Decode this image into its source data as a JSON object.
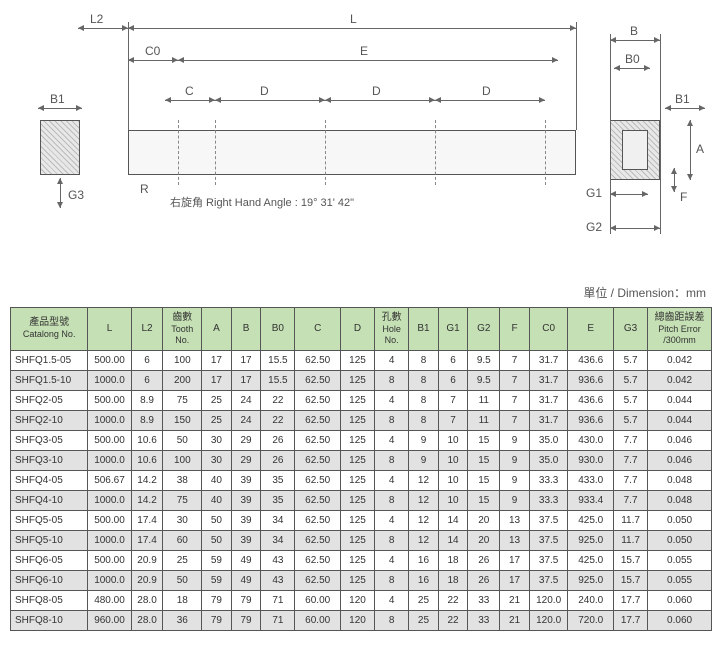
{
  "diagram": {
    "labels": {
      "L2": "L2",
      "L": "L",
      "C0": "C0",
      "E": "E",
      "B": "B",
      "B0": "B0",
      "B1": "B1",
      "C": "C",
      "D": "D",
      "G3": "G3",
      "R": "R",
      "A": "A",
      "F": "F",
      "G1": "G1",
      "G2": "G2"
    },
    "angle_note": "右旋角 Right Hand Angle : 19° 31' 42\"",
    "colors": {
      "line": "#666666",
      "fill": "#e8e8e8",
      "text": "#555555"
    }
  },
  "unit_label": "單位 / Dimension：mm",
  "table": {
    "header_bg": "#c5e0b4",
    "columns": [
      {
        "t": "產品型號",
        "s": "Catalong No."
      },
      {
        "t": "L"
      },
      {
        "t": "L2"
      },
      {
        "t": "齒數",
        "s": "Tooth No."
      },
      {
        "t": "A"
      },
      {
        "t": "B"
      },
      {
        "t": "B0"
      },
      {
        "t": "C"
      },
      {
        "t": "D"
      },
      {
        "t": "孔數",
        "s": "Hole No."
      },
      {
        "t": "B1"
      },
      {
        "t": "G1"
      },
      {
        "t": "G2"
      },
      {
        "t": "F"
      },
      {
        "t": "C0"
      },
      {
        "t": "E"
      },
      {
        "t": "G3"
      },
      {
        "t": "總齒距誤差",
        "s": "Pitch Error /300mm"
      }
    ],
    "rows": [
      [
        "SHFQ1.5-05",
        "500.00",
        "6",
        "100",
        "17",
        "17",
        "15.5",
        "62.50",
        "125",
        "4",
        "8",
        "6",
        "9.5",
        "7",
        "31.7",
        "436.6",
        "5.7",
        "0.042"
      ],
      [
        "SHFQ1.5-10",
        "1000.0",
        "6",
        "200",
        "17",
        "17",
        "15.5",
        "62.50",
        "125",
        "8",
        "8",
        "6",
        "9.5",
        "7",
        "31.7",
        "936.6",
        "5.7",
        "0.042"
      ],
      [
        "SHFQ2-05",
        "500.00",
        "8.9",
        "75",
        "25",
        "24",
        "22",
        "62.50",
        "125",
        "4",
        "8",
        "7",
        "11",
        "7",
        "31.7",
        "436.6",
        "5.7",
        "0.044"
      ],
      [
        "SHFQ2-10",
        "1000.0",
        "8.9",
        "150",
        "25",
        "24",
        "22",
        "62.50",
        "125",
        "8",
        "8",
        "7",
        "11",
        "7",
        "31.7",
        "936.6",
        "5.7",
        "0.044"
      ],
      [
        "SHFQ3-05",
        "500.00",
        "10.6",
        "50",
        "30",
        "29",
        "26",
        "62.50",
        "125",
        "4",
        "9",
        "10",
        "15",
        "9",
        "35.0",
        "430.0",
        "7.7",
        "0.046"
      ],
      [
        "SHFQ3-10",
        "1000.0",
        "10.6",
        "100",
        "30",
        "29",
        "26",
        "62.50",
        "125",
        "8",
        "9",
        "10",
        "15",
        "9",
        "35.0",
        "930.0",
        "7.7",
        "0.046"
      ],
      [
        "SHFQ4-05",
        "506.67",
        "14.2",
        "38",
        "40",
        "39",
        "35",
        "62.50",
        "125",
        "4",
        "12",
        "10",
        "15",
        "9",
        "33.3",
        "433.0",
        "7.7",
        "0.048"
      ],
      [
        "SHFQ4-10",
        "1000.0",
        "14.2",
        "75",
        "40",
        "39",
        "35",
        "62.50",
        "125",
        "8",
        "12",
        "10",
        "15",
        "9",
        "33.3",
        "933.4",
        "7.7",
        "0.048"
      ],
      [
        "SHFQ5-05",
        "500.00",
        "17.4",
        "30",
        "50",
        "39",
        "34",
        "62.50",
        "125",
        "4",
        "12",
        "14",
        "20",
        "13",
        "37.5",
        "425.0",
        "11.7",
        "0.050"
      ],
      [
        "SHFQ5-10",
        "1000.0",
        "17.4",
        "60",
        "50",
        "39",
        "34",
        "62.50",
        "125",
        "8",
        "12",
        "14",
        "20",
        "13",
        "37.5",
        "925.0",
        "11.7",
        "0.050"
      ],
      [
        "SHFQ6-05",
        "500.00",
        "20.9",
        "25",
        "59",
        "49",
        "43",
        "62.50",
        "125",
        "4",
        "16",
        "18",
        "26",
        "17",
        "37.5",
        "425.0",
        "15.7",
        "0.055"
      ],
      [
        "SHFQ6-10",
        "1000.0",
        "20.9",
        "50",
        "59",
        "49",
        "43",
        "62.50",
        "125",
        "8",
        "16",
        "18",
        "26",
        "17",
        "37.5",
        "925.0",
        "15.7",
        "0.055"
      ],
      [
        "SHFQ8-05",
        "480.00",
        "28.0",
        "18",
        "79",
        "79",
        "71",
        "60.00",
        "120",
        "4",
        "25",
        "22",
        "33",
        "21",
        "120.0",
        "240.0",
        "17.7",
        "0.060"
      ],
      [
        "SHFQ8-10",
        "960.00",
        "28.0",
        "36",
        "79",
        "79",
        "71",
        "60.00",
        "120",
        "8",
        "25",
        "22",
        "33",
        "21",
        "120.0",
        "720.0",
        "17.7",
        "0.060"
      ]
    ]
  }
}
